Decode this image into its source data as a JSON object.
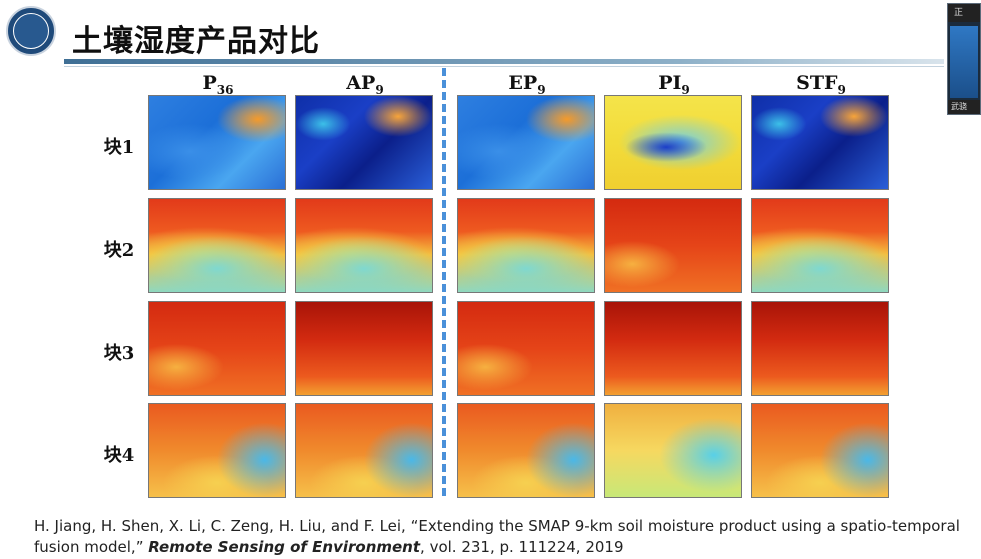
{
  "title": "土壤湿度产品对比",
  "columns": [
    {
      "base": "P",
      "sub": "36"
    },
    {
      "base": "AP",
      "sub": "9"
    },
    {
      "base": "EP",
      "sub": "9"
    },
    {
      "base": "PI",
      "sub": "9"
    },
    {
      "base": "STF",
      "sub": "9"
    }
  ],
  "rows": [
    "块1",
    "块2",
    "块3",
    "块4"
  ],
  "reference": {
    "authors": "H. Jiang, H. Shen, X. Li, C. Zeng, H. Liu, and F. Lei, “Extending the SMAP 9-km soil moisture product using a spatio-temporal fusion model,”",
    "journal": "Remote Sensing of Environment",
    "details": ", vol. 231, p. 111224, 2019"
  },
  "webcam": {
    "header": "正",
    "footer": "武骁"
  }
}
